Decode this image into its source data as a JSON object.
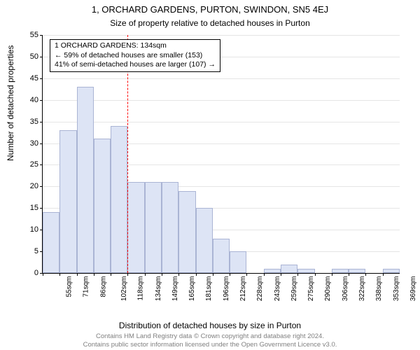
{
  "chart": {
    "type": "histogram",
    "title": "1, ORCHARD GARDENS, PURTON, SWINDON, SN5 4EJ",
    "subtitle": "Size of property relative to detached houses in Purton",
    "ylabel": "Number of detached properties",
    "xlabel": "Distribution of detached houses by size in Purton",
    "title_fontsize": 13,
    "subtitle_fontsize": 12,
    "label_fontsize": 12,
    "tick_fontsize": 11,
    "background_color": "#ffffff",
    "grid_color": "#e5e5e5",
    "bar_fill": "#dde4f5",
    "bar_border": "#aab4d4",
    "axis_color": "#000000",
    "ylim": [
      0,
      55
    ],
    "ytick_step": 5,
    "yticks": [
      0,
      5,
      10,
      15,
      20,
      25,
      30,
      35,
      40,
      45,
      50,
      55
    ],
    "categories": [
      "55sqm",
      "71sqm",
      "86sqm",
      "102sqm",
      "118sqm",
      "134sqm",
      "149sqm",
      "165sqm",
      "181sqm",
      "196sqm",
      "212sqm",
      "228sqm",
      "243sqm",
      "259sqm",
      "275sqm",
      "290sqm",
      "306sqm",
      "322sqm",
      "338sqm",
      "353sqm",
      "369sqm"
    ],
    "values": [
      14,
      33,
      43,
      31,
      34,
      21,
      21,
      21,
      19,
      15,
      8,
      5,
      0,
      1,
      2,
      1,
      0,
      1,
      1,
      0,
      1
    ],
    "bar_width_ratio": 1.0,
    "reference_line": {
      "index": 5,
      "color": "#ff0000",
      "dash": "dashed"
    },
    "annotation": {
      "line1": "1 ORCHARD GARDENS: 134sqm",
      "line2": "← 59% of detached houses are smaller (153)",
      "line3": "41% of semi-detached houses are larger (107) →",
      "border_color": "#000000",
      "bg_color": "#ffffff",
      "fontsize": 10.5
    },
    "footer_line1": "Contains HM Land Registry data © Crown copyright and database right 2024.",
    "footer_line2": "Contains public sector information licensed under the Open Government Licence v3.0.",
    "footer_color": "#808080",
    "footer_fontsize": 9.5
  }
}
